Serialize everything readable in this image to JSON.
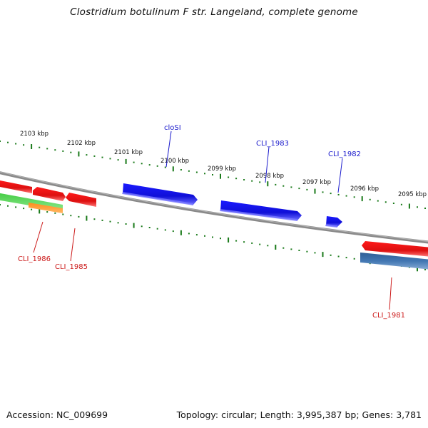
{
  "title": "Clostridium botulinum F str. Langeland, complete genome",
  "accession": "Accession: NC_009699",
  "topology": "Topology: circular; Length: 3,995,387 bp; Genes: 3,781",
  "colors": {
    "backbone": "#808080",
    "tick": "#1a7a1a",
    "forward_label": "#1a1acc",
    "reverse_label": "#cc1a1a",
    "blue_gene": "#1515e6",
    "red_gene": "#e61515",
    "green_gene": "#3cc83c",
    "orange_gene": "#ff8c1a",
    "steel_gene": "#3d6fa6"
  },
  "kbp_labels": [
    "2103 kbp",
    "2102 kbp",
    "2101 kbp",
    "2100 kbp",
    "2099 kbp",
    "2098 kbp",
    "2097 kbp",
    "2096 kbp",
    "2095 kbp"
  ],
  "gene_labels": {
    "closI": "cloSI",
    "cli1983": "CLI_1983",
    "cli1982": "CLI_1982",
    "cli1986": "CLI_1986",
    "cli1985": "CLI_1985",
    "cli1981": "CLI_1981"
  }
}
